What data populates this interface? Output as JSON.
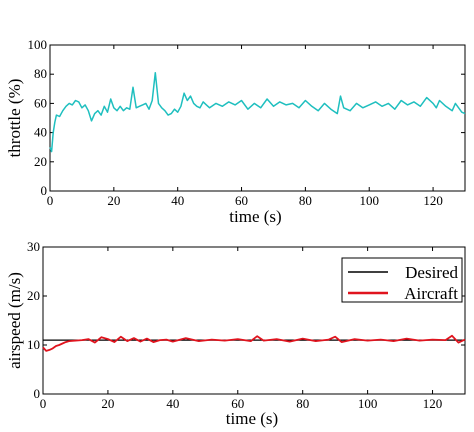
{
  "chart_data": [
    {
      "type": "line",
      "xlabel": "time (s)",
      "ylabel": "throttle (%)",
      "xlim": [
        0,
        130
      ],
      "ylim": [
        0,
        100
      ],
      "xticks": [
        "0",
        "20",
        "40",
        "60",
        "80",
        "100",
        "120"
      ],
      "yticks": [
        "0",
        "20",
        "40",
        "60",
        "80",
        "100"
      ],
      "legend": "none",
      "grid": false,
      "series": [
        {
          "color": "#1fbfbf",
          "x": [
            0,
            0.5,
            1,
            1.5,
            2,
            3,
            4,
            5,
            6,
            7,
            8,
            9,
            10,
            11,
            12,
            13,
            14,
            15,
            16,
            17,
            18,
            19,
            20,
            21,
            22,
            23,
            24,
            25,
            26,
            27,
            28,
            29,
            30,
            31,
            32,
            33,
            34,
            35,
            36,
            37,
            38,
            39,
            40,
            41,
            42,
            43,
            44,
            45,
            46,
            47,
            48,
            49,
            50,
            52,
            54,
            56,
            58,
            60,
            62,
            64,
            66,
            68,
            70,
            72,
            74,
            76,
            78,
            80,
            82,
            84,
            86,
            88,
            90,
            91,
            92,
            94,
            96,
            98,
            100,
            102,
            104,
            106,
            108,
            110,
            112,
            114,
            116,
            118,
            120,
            121,
            122,
            124,
            126,
            127,
            128,
            129,
            130
          ],
          "y": [
            30,
            27,
            40,
            47,
            52,
            51,
            55,
            58,
            60,
            59,
            62,
            61,
            57,
            59,
            55,
            48,
            53,
            55,
            52,
            58,
            54,
            63,
            57,
            55,
            58,
            55,
            57,
            56,
            71,
            57,
            58,
            59,
            60,
            56,
            62,
            81,
            60,
            57,
            55,
            52,
            53,
            56,
            54,
            58,
            67,
            62,
            65,
            60,
            58,
            57,
            61,
            59,
            57,
            60,
            58,
            61,
            59,
            62,
            56,
            60,
            57,
            63,
            58,
            61,
            59,
            60,
            57,
            62,
            58,
            55,
            60,
            56,
            53,
            65,
            57,
            55,
            60,
            57,
            59,
            61,
            58,
            60,
            56,
            62,
            59,
            61,
            58,
            64,
            60,
            57,
            62,
            58,
            55,
            60,
            57,
            54,
            53
          ]
        }
      ]
    },
    {
      "type": "line",
      "xlabel": "time (s)",
      "ylabel": "airspeed (m/s)",
      "xlim": [
        0,
        130
      ],
      "ylim": [
        0,
        30
      ],
      "xticks": [
        "0",
        "20",
        "40",
        "60",
        "80",
        "100",
        "120"
      ],
      "yticks": [
        "0",
        "10",
        "20",
        "30"
      ],
      "legend": "top-right",
      "grid": false,
      "series": [
        {
          "name": "Desired",
          "color": "#000000",
          "x": [
            0,
            130
          ],
          "y": [
            11,
            11
          ]
        },
        {
          "name": "Aircraft",
          "color": "#e0141e",
          "x": [
            0,
            1,
            2,
            3,
            4,
            5,
            6,
            7,
            8,
            10,
            12,
            14,
            16,
            18,
            20,
            22,
            24,
            26,
            28,
            30,
            32,
            34,
            36,
            38,
            40,
            44,
            48,
            52,
            56,
            60,
            64,
            66,
            68,
            72,
            76,
            80,
            84,
            88,
            90,
            92,
            96,
            100,
            104,
            108,
            112,
            116,
            120,
            124,
            126,
            128,
            130
          ],
          "y": [
            9.5,
            8.8,
            9.0,
            9.3,
            9.8,
            10.0,
            10.3,
            10.6,
            10.8,
            10.9,
            11.0,
            11.2,
            10.5,
            11.6,
            11.2,
            10.6,
            11.7,
            10.8,
            11.4,
            10.7,
            11.3,
            10.6,
            11.0,
            11.1,
            10.7,
            11.4,
            10.8,
            11.1,
            10.9,
            11.2,
            10.8,
            11.8,
            10.9,
            11.2,
            10.7,
            11.3,
            10.8,
            11.1,
            11.7,
            10.6,
            11.2,
            10.9,
            11.1,
            10.8,
            11.3,
            10.9,
            11.1,
            11.0,
            11.9,
            10.5,
            11.1
          ]
        }
      ]
    }
  ]
}
